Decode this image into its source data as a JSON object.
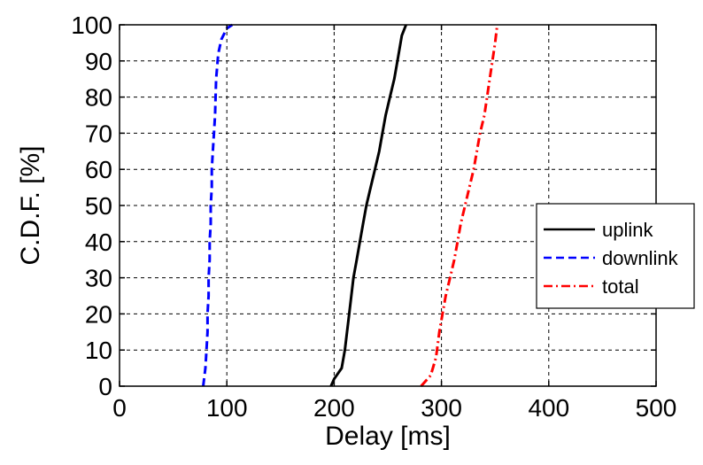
{
  "chart_data": {
    "type": "line",
    "title": "",
    "xlabel": "Delay [ms]",
    "ylabel": "C.D.F.  [%]",
    "xlim": [
      0,
      500
    ],
    "ylim": [
      0,
      100
    ],
    "xticks": [
      "0",
      "100",
      "200",
      "300",
      "400",
      "500"
    ],
    "yticks": [
      "0",
      "10",
      "20",
      "30",
      "40",
      "50",
      "60",
      "70",
      "80",
      "90",
      "100"
    ],
    "grid": true,
    "legend_position": "right",
    "series": [
      {
        "name": "uplink",
        "color": "#000000",
        "style": "solid",
        "x": [
          197,
          200,
          207,
          210,
          214,
          218,
          221,
          224,
          227,
          230,
          234,
          238,
          242,
          245,
          248,
          252,
          256,
          259,
          263,
          267
        ],
        "y": [
          0,
          2,
          5,
          10,
          20,
          30,
          35,
          40,
          45,
          50,
          55,
          60,
          65,
          70,
          75,
          80,
          85,
          90,
          97,
          100
        ]
      },
      {
        "name": "downlink",
        "color": "#0000ff",
        "style": "dashed",
        "x": [
          78,
          80,
          81,
          82,
          82,
          83,
          83,
          84,
          84,
          85,
          85,
          86,
          86,
          87,
          89,
          90,
          92,
          95,
          100,
          105
        ],
        "y": [
          0,
          5,
          10,
          15,
          20,
          25,
          30,
          35,
          40,
          45,
          50,
          55,
          60,
          65,
          75,
          85,
          92,
          96,
          99,
          100
        ]
      },
      {
        "name": "total",
        "color": "#ff0000",
        "style": "dashdot",
        "x": [
          281,
          290,
          295,
          298,
          301,
          304,
          308,
          312,
          315,
          318,
          322,
          326,
          330,
          333,
          336,
          340,
          345,
          350,
          352
        ],
        "y": [
          0,
          3,
          8,
          15,
          20,
          25,
          30,
          35,
          40,
          45,
          50,
          55,
          60,
          65,
          70,
          75,
          85,
          95,
          100
        ]
      }
    ]
  }
}
